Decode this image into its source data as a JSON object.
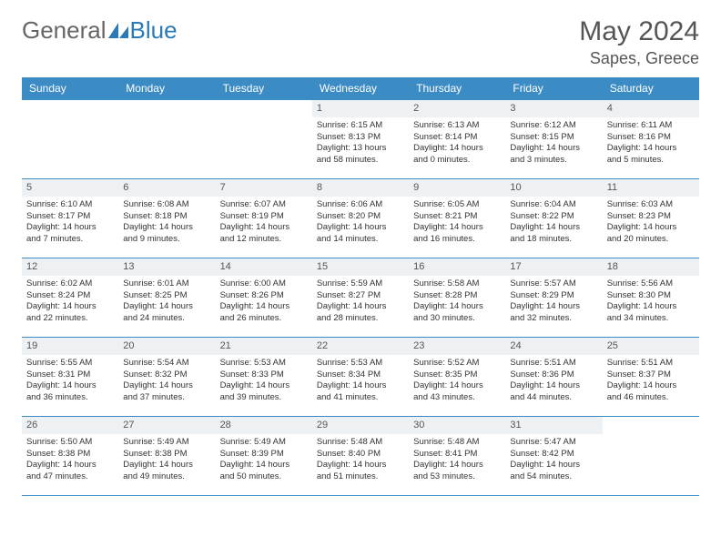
{
  "logo": {
    "text1": "General",
    "text2": "Blue"
  },
  "title": "May 2024",
  "location": "Sapes, Greece",
  "colors": {
    "header_bg": "#3b8bc5",
    "header_text": "#ffffff",
    "daynum_bg": "#eef1f3",
    "border": "#3b8bc5",
    "body_text": "#333333",
    "logo_gray": "#666666",
    "logo_blue": "#2a7ab8"
  },
  "day_names": [
    "Sunday",
    "Monday",
    "Tuesday",
    "Wednesday",
    "Thursday",
    "Friday",
    "Saturday"
  ],
  "weeks": [
    [
      {
        "day": "",
        "lines": [
          "",
          "",
          "",
          ""
        ]
      },
      {
        "day": "",
        "lines": [
          "",
          "",
          "",
          ""
        ]
      },
      {
        "day": "",
        "lines": [
          "",
          "",
          "",
          ""
        ]
      },
      {
        "day": "1",
        "lines": [
          "Sunrise: 6:15 AM",
          "Sunset: 8:13 PM",
          "Daylight: 13 hours",
          "and 58 minutes."
        ]
      },
      {
        "day": "2",
        "lines": [
          "Sunrise: 6:13 AM",
          "Sunset: 8:14 PM",
          "Daylight: 14 hours",
          "and 0 minutes."
        ]
      },
      {
        "day": "3",
        "lines": [
          "Sunrise: 6:12 AM",
          "Sunset: 8:15 PM",
          "Daylight: 14 hours",
          "and 3 minutes."
        ]
      },
      {
        "day": "4",
        "lines": [
          "Sunrise: 6:11 AM",
          "Sunset: 8:16 PM",
          "Daylight: 14 hours",
          "and 5 minutes."
        ]
      }
    ],
    [
      {
        "day": "5",
        "lines": [
          "Sunrise: 6:10 AM",
          "Sunset: 8:17 PM",
          "Daylight: 14 hours",
          "and 7 minutes."
        ]
      },
      {
        "day": "6",
        "lines": [
          "Sunrise: 6:08 AM",
          "Sunset: 8:18 PM",
          "Daylight: 14 hours",
          "and 9 minutes."
        ]
      },
      {
        "day": "7",
        "lines": [
          "Sunrise: 6:07 AM",
          "Sunset: 8:19 PM",
          "Daylight: 14 hours",
          "and 12 minutes."
        ]
      },
      {
        "day": "8",
        "lines": [
          "Sunrise: 6:06 AM",
          "Sunset: 8:20 PM",
          "Daylight: 14 hours",
          "and 14 minutes."
        ]
      },
      {
        "day": "9",
        "lines": [
          "Sunrise: 6:05 AM",
          "Sunset: 8:21 PM",
          "Daylight: 14 hours",
          "and 16 minutes."
        ]
      },
      {
        "day": "10",
        "lines": [
          "Sunrise: 6:04 AM",
          "Sunset: 8:22 PM",
          "Daylight: 14 hours",
          "and 18 minutes."
        ]
      },
      {
        "day": "11",
        "lines": [
          "Sunrise: 6:03 AM",
          "Sunset: 8:23 PM",
          "Daylight: 14 hours",
          "and 20 minutes."
        ]
      }
    ],
    [
      {
        "day": "12",
        "lines": [
          "Sunrise: 6:02 AM",
          "Sunset: 8:24 PM",
          "Daylight: 14 hours",
          "and 22 minutes."
        ]
      },
      {
        "day": "13",
        "lines": [
          "Sunrise: 6:01 AM",
          "Sunset: 8:25 PM",
          "Daylight: 14 hours",
          "and 24 minutes."
        ]
      },
      {
        "day": "14",
        "lines": [
          "Sunrise: 6:00 AM",
          "Sunset: 8:26 PM",
          "Daylight: 14 hours",
          "and 26 minutes."
        ]
      },
      {
        "day": "15",
        "lines": [
          "Sunrise: 5:59 AM",
          "Sunset: 8:27 PM",
          "Daylight: 14 hours",
          "and 28 minutes."
        ]
      },
      {
        "day": "16",
        "lines": [
          "Sunrise: 5:58 AM",
          "Sunset: 8:28 PM",
          "Daylight: 14 hours",
          "and 30 minutes."
        ]
      },
      {
        "day": "17",
        "lines": [
          "Sunrise: 5:57 AM",
          "Sunset: 8:29 PM",
          "Daylight: 14 hours",
          "and 32 minutes."
        ]
      },
      {
        "day": "18",
        "lines": [
          "Sunrise: 5:56 AM",
          "Sunset: 8:30 PM",
          "Daylight: 14 hours",
          "and 34 minutes."
        ]
      }
    ],
    [
      {
        "day": "19",
        "lines": [
          "Sunrise: 5:55 AM",
          "Sunset: 8:31 PM",
          "Daylight: 14 hours",
          "and 36 minutes."
        ]
      },
      {
        "day": "20",
        "lines": [
          "Sunrise: 5:54 AM",
          "Sunset: 8:32 PM",
          "Daylight: 14 hours",
          "and 37 minutes."
        ]
      },
      {
        "day": "21",
        "lines": [
          "Sunrise: 5:53 AM",
          "Sunset: 8:33 PM",
          "Daylight: 14 hours",
          "and 39 minutes."
        ]
      },
      {
        "day": "22",
        "lines": [
          "Sunrise: 5:53 AM",
          "Sunset: 8:34 PM",
          "Daylight: 14 hours",
          "and 41 minutes."
        ]
      },
      {
        "day": "23",
        "lines": [
          "Sunrise: 5:52 AM",
          "Sunset: 8:35 PM",
          "Daylight: 14 hours",
          "and 43 minutes."
        ]
      },
      {
        "day": "24",
        "lines": [
          "Sunrise: 5:51 AM",
          "Sunset: 8:36 PM",
          "Daylight: 14 hours",
          "and 44 minutes."
        ]
      },
      {
        "day": "25",
        "lines": [
          "Sunrise: 5:51 AM",
          "Sunset: 8:37 PM",
          "Daylight: 14 hours",
          "and 46 minutes."
        ]
      }
    ],
    [
      {
        "day": "26",
        "lines": [
          "Sunrise: 5:50 AM",
          "Sunset: 8:38 PM",
          "Daylight: 14 hours",
          "and 47 minutes."
        ]
      },
      {
        "day": "27",
        "lines": [
          "Sunrise: 5:49 AM",
          "Sunset: 8:38 PM",
          "Daylight: 14 hours",
          "and 49 minutes."
        ]
      },
      {
        "day": "28",
        "lines": [
          "Sunrise: 5:49 AM",
          "Sunset: 8:39 PM",
          "Daylight: 14 hours",
          "and 50 minutes."
        ]
      },
      {
        "day": "29",
        "lines": [
          "Sunrise: 5:48 AM",
          "Sunset: 8:40 PM",
          "Daylight: 14 hours",
          "and 51 minutes."
        ]
      },
      {
        "day": "30",
        "lines": [
          "Sunrise: 5:48 AM",
          "Sunset: 8:41 PM",
          "Daylight: 14 hours",
          "and 53 minutes."
        ]
      },
      {
        "day": "31",
        "lines": [
          "Sunrise: 5:47 AM",
          "Sunset: 8:42 PM",
          "Daylight: 14 hours",
          "and 54 minutes."
        ]
      },
      {
        "day": "",
        "lines": [
          "",
          "",
          "",
          ""
        ]
      }
    ]
  ]
}
